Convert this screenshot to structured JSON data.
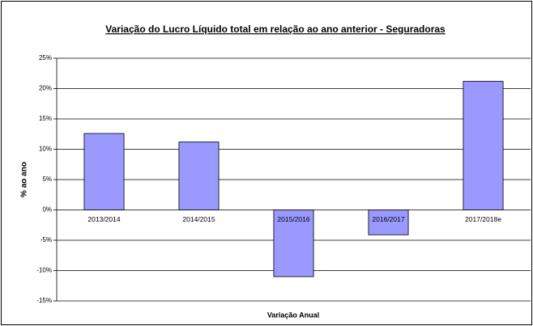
{
  "chart_data": {
    "type": "bar",
    "title": "Variação do Lucro Líquido total em relação ao ano anterior - Seguradoras",
    "x_label": "Variação Anual",
    "y_label": "% ao ano",
    "categories": [
      "2013/2014",
      "2014/2015",
      "2015/2016",
      "2016/2017",
      "2017/2018e"
    ],
    "values": [
      12.6,
      11.2,
      -11,
      -4.1,
      21.2
    ],
    "color": "#9999ff",
    "ylim": [
      -15,
      25
    ],
    "yticks": [
      {
        "value": -15,
        "label": "-15%"
      },
      {
        "value": -10,
        "label": "-10%"
      },
      {
        "value": -5,
        "label": "-5%"
      },
      {
        "value": 0,
        "label": "0%"
      },
      {
        "value": 5,
        "label": "5%"
      },
      {
        "value": 10,
        "label": "10%"
      },
      {
        "value": 15,
        "label": "15%"
      },
      {
        "value": 20,
        "label": "20%"
      },
      {
        "value": 25,
        "label": "25%"
      }
    ],
    "grid": true
  }
}
